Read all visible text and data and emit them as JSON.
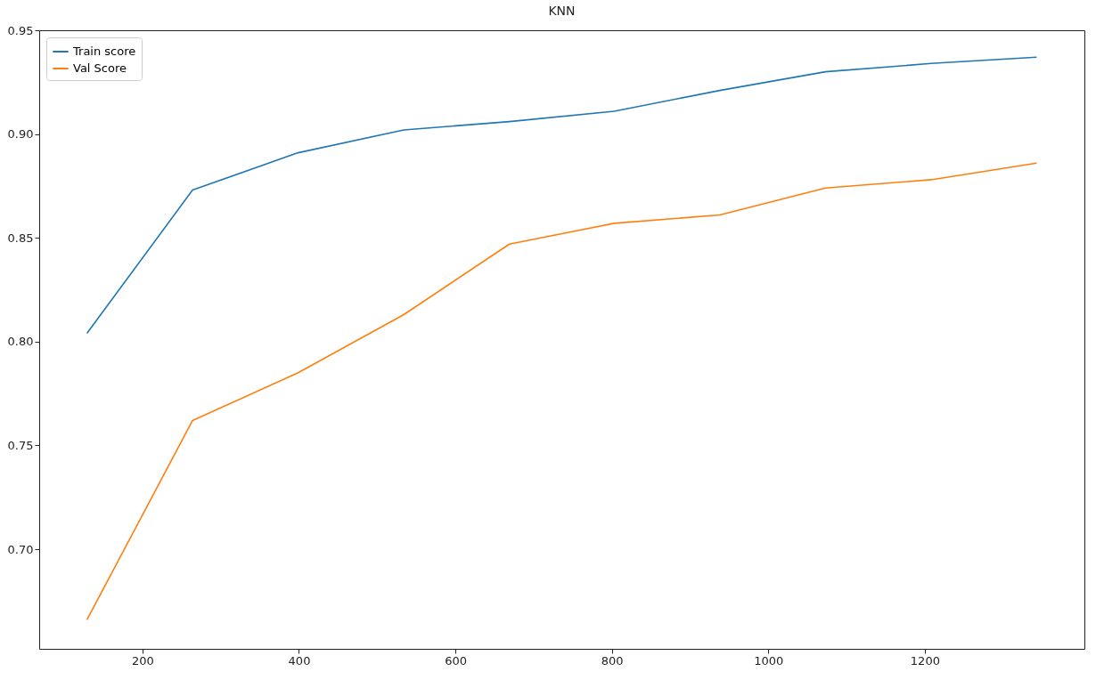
{
  "chart_data": {
    "type": "line",
    "title": "KNN",
    "x": [
      129,
      264,
      399,
      534,
      669,
      803,
      938,
      1073,
      1208,
      1343
    ],
    "series": [
      {
        "name": "Train score",
        "color": "#1f77b4",
        "values": [
          0.804,
          0.873,
          0.891,
          0.902,
          0.906,
          0.911,
          0.921,
          0.93,
          0.934,
          0.937
        ]
      },
      {
        "name": "Val Score",
        "color": "#ff7f0e",
        "values": [
          0.666,
          0.762,
          0.785,
          0.813,
          0.847,
          0.857,
          0.861,
          0.874,
          0.878,
          0.886
        ]
      }
    ],
    "xlim": [
      68,
      1404
    ],
    "xticks": [
      200,
      400,
      600,
      800,
      1000,
      1200
    ],
    "ylim": [
      0.652,
      0.95
    ],
    "yticks": [
      {
        "value": 0.7,
        "label": "0.70"
      },
      {
        "value": 0.75,
        "label": "0.75"
      },
      {
        "value": 0.8,
        "label": "0.80"
      },
      {
        "value": 0.85,
        "label": "0.85"
      },
      {
        "value": 0.9,
        "label": "0.90"
      },
      {
        "value": 0.95,
        "label": "0.95"
      }
    ],
    "legend": "top left",
    "grid": false,
    "marker": "none",
    "line_style": "solid"
  }
}
